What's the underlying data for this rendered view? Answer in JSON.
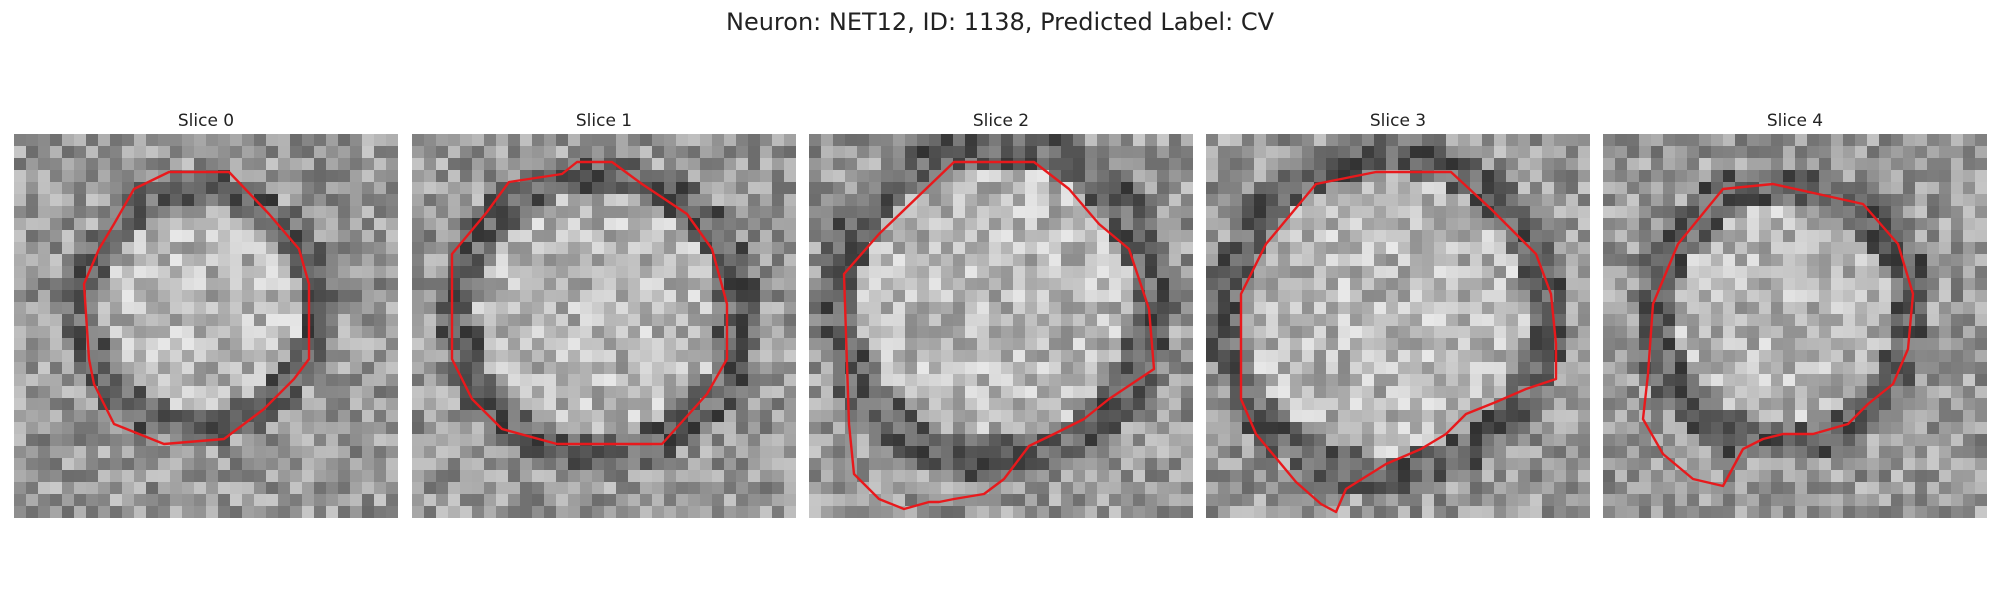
{
  "figure": {
    "title": "Neuron: NET12, ID: 1138, Predicted Label: CV"
  },
  "panels": [
    {
      "title": "Slice 0"
    },
    {
      "title": "Slice 1"
    },
    {
      "title": "Slice 2"
    },
    {
      "title": "Slice 3"
    },
    {
      "title": "Slice 4"
    }
  ],
  "colors": {
    "contour": "#e8191c",
    "background": "#ffffff"
  }
}
